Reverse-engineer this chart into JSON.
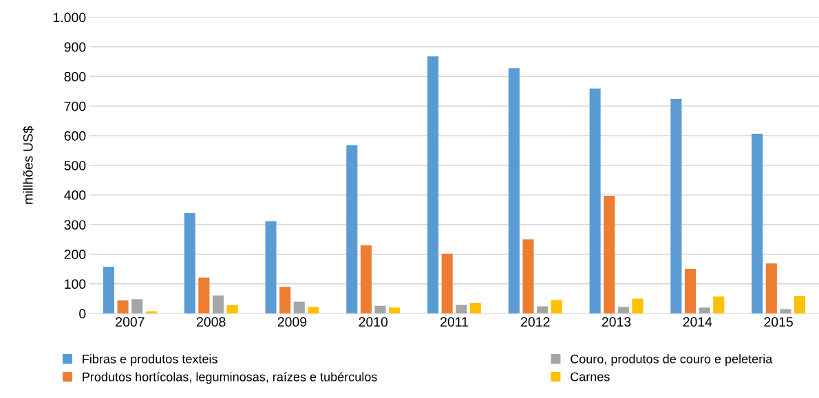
{
  "chart_data": {
    "type": "bar",
    "ylabel": "millhões US$",
    "categories": [
      "2007",
      "2008",
      "2009",
      "2010",
      "2011",
      "2012",
      "2013",
      "2014",
      "2015"
    ],
    "series": [
      {
        "name": "Fibras e produtos texteis",
        "color": "#5b9bd5",
        "values": [
          158,
          339,
          311,
          568,
          868,
          828,
          759,
          724,
          606
        ]
      },
      {
        "name": "Produtos hortícolas, leguminosas, raízes e tubérculos",
        "color": "#ed7d31",
        "values": [
          44,
          121,
          90,
          230,
          202,
          250,
          397,
          151,
          169
        ]
      },
      {
        "name": "Couro, produtos de couro e peleteria",
        "color": "#a5a5a5",
        "values": [
          48,
          61,
          40,
          26,
          29,
          24,
          22,
          20,
          14
        ]
      },
      {
        "name": "Carnes",
        "color": "#ffc000",
        "values": [
          7,
          28,
          22,
          20,
          35,
          45,
          50,
          57,
          59
        ]
      }
    ],
    "ylim": [
      0,
      1000
    ],
    "yticks": [
      0,
      100,
      200,
      300,
      400,
      500,
      600,
      700,
      800,
      900,
      {
        "value": 1000,
        "label": "1.000"
      }
    ],
    "grid": "y",
    "legend": "bottom"
  }
}
